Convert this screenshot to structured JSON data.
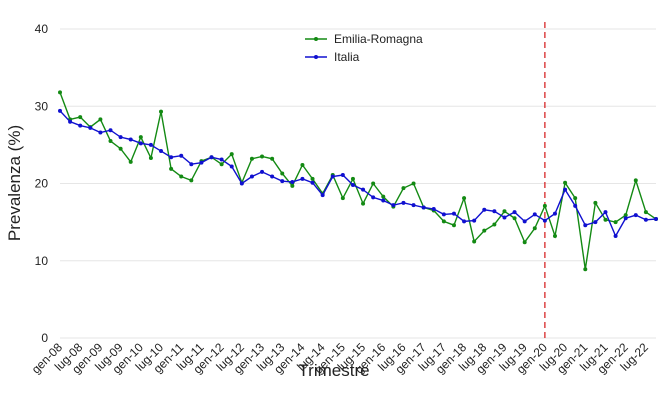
{
  "chart_data": {
    "type": "line",
    "x_label": "Trimestre",
    "y_label": "Prevalenza (%)",
    "categories": [
      "gen-08",
      null,
      "lug-08",
      null,
      "gen-09",
      null,
      "lug-09",
      null,
      "gen-10",
      null,
      "lug-10",
      null,
      "gen-11",
      null,
      "lug-11",
      null,
      "gen-12",
      null,
      "lug-12",
      null,
      "gen-13",
      null,
      "lug-13",
      null,
      "gen-14",
      null,
      "lug-14",
      null,
      "gen-15",
      null,
      "lug-15",
      null,
      "gen-16",
      null,
      "lug-16",
      null,
      "gen-17",
      null,
      "lug-17",
      null,
      "gen-18",
      null,
      "lug-18",
      null,
      "gen-19",
      null,
      "lug-19",
      null,
      "gen-20",
      null,
      "lug-20",
      null,
      "gen-21",
      null,
      "lug-21",
      null,
      "gen-22",
      null,
      "lug-22",
      null
    ],
    "series": [
      {
        "name": "Emilia-Romagna",
        "color": "#138a13",
        "values": [
          31.8,
          28.3,
          28.6,
          27.3,
          28.3,
          25.5,
          24.5,
          22.8,
          26.0,
          23.3,
          29.3,
          21.9,
          20.9,
          20.4,
          22.9,
          23.4,
          22.5,
          23.8,
          20.1,
          23.2,
          23.5,
          23.2,
          21.3,
          19.7,
          22.4,
          20.6,
          18.7,
          21.1,
          18.1,
          20.6,
          17.4,
          20.0,
          18.3,
          17.0,
          19.4,
          20.0,
          16.9,
          16.5,
          15.1,
          14.6,
          18.1,
          12.5,
          13.9,
          14.7,
          16.4,
          15.5,
          12.4,
          14.2,
          17.1,
          13.2,
          20.1,
          18.1,
          8.9,
          17.5,
          15.3,
          15.0,
          15.9,
          20.4,
          16.3,
          15.4
        ]
      },
      {
        "name": "Italia",
        "color": "#1010d0",
        "values": [
          29.4,
          28.0,
          27.5,
          27.2,
          26.6,
          26.9,
          26.0,
          25.7,
          25.2,
          25.0,
          24.2,
          23.4,
          23.6,
          22.5,
          22.7,
          23.4,
          23.1,
          22.2,
          20.0,
          20.9,
          21.5,
          20.9,
          20.3,
          20.2,
          20.6,
          20.1,
          18.5,
          20.9,
          21.1,
          19.8,
          19.2,
          18.2,
          17.8,
          17.2,
          17.5,
          17.2,
          16.9,
          16.7,
          16.0,
          16.1,
          15.1,
          15.2,
          16.6,
          16.4,
          15.6,
          16.3,
          15.1,
          16.0,
          15.2,
          16.1,
          19.2,
          17.1,
          14.6,
          15.0,
          16.3,
          13.2,
          15.5,
          15.9,
          15.3,
          15.4
        ]
      }
    ],
    "ylim": [
      0,
      40
    ],
    "yticks": [
      0,
      10,
      20,
      30,
      40
    ],
    "grid": true,
    "legend": "upper center",
    "vline": {
      "category": "gen-20",
      "color": "#d62728"
    }
  }
}
